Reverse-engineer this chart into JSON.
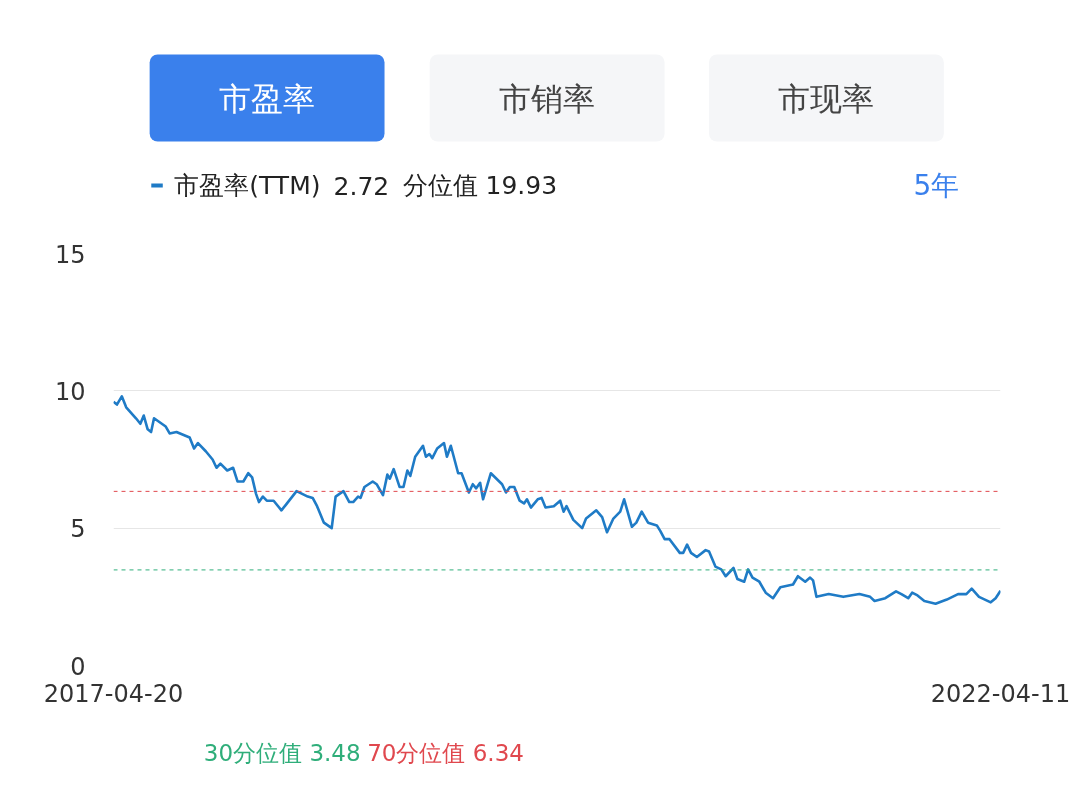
{
  "chart_data": {
    "type": "line",
    "title": "2.72",
    "subtitle": "分位值 19.93",
    "annotations": [
      "市盈率",
      "市销率",
      "市现率",
      "5年"
    ],
    "xlim": [
      "2017-04-20",
      "2022-04-11"
    ],
    "xticks": [
      "2017-04-20",
      "2022-04-11"
    ],
    "ylim": [
      0,
      15
    ],
    "yticks": [
      0,
      5,
      10,
      15
    ],
    "grid": "y",
    "legend": "top left",
    "marker": "none",
    "line_style": "solid",
    "ref_lines": [
      {
        "axis": "y",
        "value": 3.48,
        "label": "30分位值 3.48",
        "color": "#2fae7a",
        "line_style": "dashed"
      },
      {
        "axis": "y",
        "value": 6.34,
        "label": "70分位值 6.34",
        "color": "#e0484e",
        "line_style": "dashed"
      }
    ],
    "series": [
      {
        "name": "市盈率(TTM)",
        "color": "#1f7bc6",
        "x": [
          "2017-04-20",
          "2017-04-27",
          "2017-05-07",
          "2017-05-16",
          "2017-06-05",
          "2017-06-14",
          "2017-06-21",
          "2017-06-29",
          "2017-07-06",
          "2017-07-12",
          "2017-08-05",
          "2017-08-13",
          "2017-08-27",
          "2017-09-23",
          "2017-10-02",
          "2017-10-10",
          "2017-10-26",
          "2017-11-09",
          "2017-11-17",
          "2017-11-25",
          "2017-12-09",
          "2017-12-21",
          "2017-12-30",
          "2018-01-11",
          "2018-01-21",
          "2018-01-29",
          "2018-02-06",
          "2018-02-12",
          "2018-02-20",
          "2018-02-28",
          "2018-03-14",
          "2018-03-30",
          "2018-04-08",
          "2018-04-30",
          "2018-05-23",
          "2018-06-02",
          "2018-06-11",
          "2018-06-25",
          "2018-07-11",
          "2018-07-19",
          "2018-08-04",
          "2018-08-16",
          "2018-08-24",
          "2018-09-03",
          "2018-09-08",
          "2018-09-16",
          "2018-10-03",
          "2018-10-11",
          "2018-10-24",
          "2018-11-02",
          "2018-11-07",
          "2018-11-15",
          "2018-11-27",
          "2018-12-05",
          "2018-12-13",
          "2018-12-19",
          "2018-12-29",
          "2019-01-14",
          "2019-01-20",
          "2019-01-27",
          "2019-02-02",
          "2019-02-12",
          "2019-02-26",
          "2019-03-04",
          "2019-03-12",
          "2019-03-27",
          "2019-04-03",
          "2019-04-18",
          "2019-04-26",
          "2019-05-03",
          "2019-05-11",
          "2019-05-17",
          "2019-06-02",
          "2019-06-25",
          "2019-07-03",
          "2019-07-11",
          "2019-07-20",
          "2019-07-31",
          "2019-08-09",
          "2019-08-15",
          "2019-08-23",
          "2019-09-06",
          "2019-09-14",
          "2019-09-22",
          "2019-10-09",
          "2019-10-22",
          "2019-10-29",
          "2019-11-04",
          "2019-11-18",
          "2019-12-06",
          "2019-12-14",
          "2020-01-04",
          "2020-01-16",
          "2020-01-26",
          "2020-02-08",
          "2020-02-22",
          "2020-03-01",
          "2020-03-17",
          "2020-03-26",
          "2020-04-06",
          "2020-04-19",
          "2020-05-07",
          "2020-05-14",
          "2020-05-23",
          "2020-06-02",
          "2020-06-23",
          "2020-06-30",
          "2020-07-08",
          "2020-07-16",
          "2020-07-28",
          "2020-08-15",
          "2020-08-22",
          "2020-09-04",
          "2020-09-16",
          "2020-09-25",
          "2020-10-11",
          "2020-10-19",
          "2020-11-02",
          "2020-11-10",
          "2020-11-19",
          "2020-12-03",
          "2020-12-16",
          "2020-12-31",
          "2021-01-15",
          "2021-02-10",
          "2021-02-20",
          "2021-03-07",
          "2021-03-17",
          "2021-03-23",
          "2021-03-30",
          "2021-04-24",
          "2021-05-24",
          "2021-06-26",
          "2021-07-18",
          "2021-07-27",
          "2021-08-18",
          "2021-09-09",
          "2021-09-20",
          "2021-10-04",
          "2021-10-12",
          "2021-10-23",
          "2021-11-06",
          "2021-11-29",
          "2021-12-22",
          "2022-01-14",
          "2022-01-31",
          "2022-02-11",
          "2022-02-26",
          "2022-03-22",
          "2022-04-01",
          "2022-04-11"
        ],
        "values": [
          9.6,
          9.5,
          9.8,
          9.4,
          9.0,
          8.8,
          9.1,
          8.6,
          8.5,
          9.0,
          8.7,
          8.45,
          8.5,
          8.3,
          7.9,
          8.1,
          7.8,
          7.5,
          7.2,
          7.35,
          7.1,
          7.2,
          6.7,
          6.7,
          7.0,
          6.85,
          6.25,
          5.95,
          6.15,
          6.0,
          6.0,
          5.65,
          5.85,
          6.35,
          6.15,
          6.1,
          5.8,
          5.2,
          5.0,
          6.15,
          6.35,
          5.95,
          5.95,
          6.15,
          6.1,
          6.5,
          6.7,
          6.6,
          6.2,
          6.95,
          6.8,
          7.15,
          6.5,
          6.5,
          7.1,
          6.9,
          7.6,
          8.0,
          7.6,
          7.7,
          7.55,
          7.9,
          8.1,
          7.6,
          8.0,
          7.0,
          7.0,
          6.3,
          6.6,
          6.45,
          6.65,
          6.05,
          7.0,
          6.6,
          6.3,
          6.5,
          6.5,
          6.0,
          5.9,
          6.05,
          5.75,
          6.05,
          6.1,
          5.75,
          5.8,
          6.0,
          5.6,
          5.8,
          5.3,
          5.0,
          5.35,
          5.65,
          5.4,
          4.85,
          5.35,
          5.6,
          6.05,
          5.05,
          5.2,
          5.6,
          5.2,
          5.1,
          4.9,
          4.6,
          4.6,
          4.1,
          4.1,
          4.4,
          4.1,
          3.95,
          4.2,
          4.15,
          3.6,
          3.5,
          3.25,
          3.55,
          3.15,
          3.05,
          3.5,
          3.2,
          3.05,
          2.65,
          2.45,
          2.85,
          2.95,
          3.25,
          3.05,
          3.2,
          3.1,
          2.5,
          2.6,
          2.5,
          2.6,
          2.5,
          2.35,
          2.45,
          2.7,
          2.6,
          2.45,
          2.65,
          2.55,
          2.35,
          2.25,
          2.4,
          2.6,
          2.6,
          2.8,
          2.5,
          2.3,
          2.45,
          2.72
        ]
      }
    ]
  }
}
